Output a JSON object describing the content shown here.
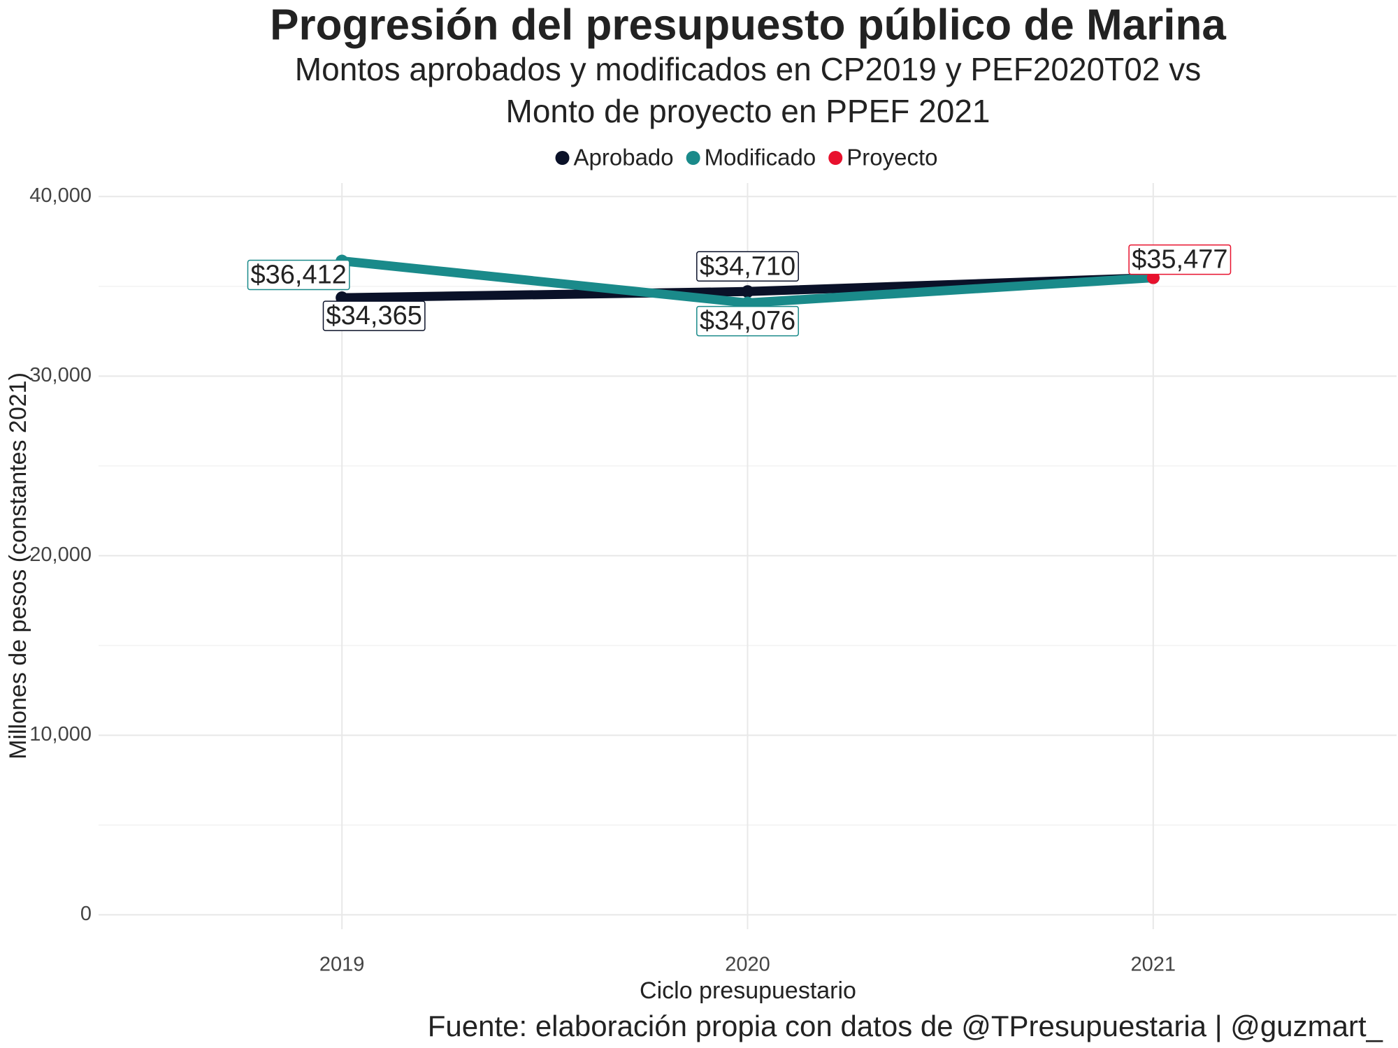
{
  "chart_data": {
    "type": "line",
    "title": "Progresión del presupuesto público de Marina",
    "subtitle": [
      "Montos aprobados y modificados en CP2019 y PEF2020T02 vs",
      "Monto de proyecto en PPEF 2021"
    ],
    "x_label": "Ciclo presupuestario",
    "y_label": "Millones de pesos (constantes 2021)",
    "caption": "Fuente: elaboración propia con datos de @TPresupuestaria | @guzmart_",
    "x": [
      2019,
      2020,
      2021
    ],
    "xlim": [
      2018.4,
      2021.6
    ],
    "xticks": [
      2019,
      2020,
      2021
    ],
    "ylim": [
      -800,
      40750
    ],
    "yticks": [
      0,
      {
        "value": 10000,
        "label": "10,000"
      },
      {
        "value": 20000,
        "label": "20,000"
      },
      {
        "value": 30000,
        "label": "30,000"
      },
      {
        "value": 40000,
        "label": "40,000"
      }
    ],
    "grid": true,
    "legend_position": "top",
    "series": [
      {
        "name": "Aprobado",
        "color": "#0a1128",
        "values": [
          34365,
          34710,
          35477
        ],
        "value_labels": [
          "$34,365",
          "$34,710",
          null
        ]
      },
      {
        "name": "Modificado",
        "color": "#1a8a8a",
        "values": [
          36412,
          34076,
          35477
        ],
        "value_labels": [
          "$36,412",
          "$34,076",
          null
        ]
      },
      {
        "name": "Proyecto",
        "color": "#e8112d",
        "values": [
          null,
          null,
          35477
        ],
        "value_labels": [
          null,
          null,
          "$35,477"
        ]
      }
    ]
  }
}
